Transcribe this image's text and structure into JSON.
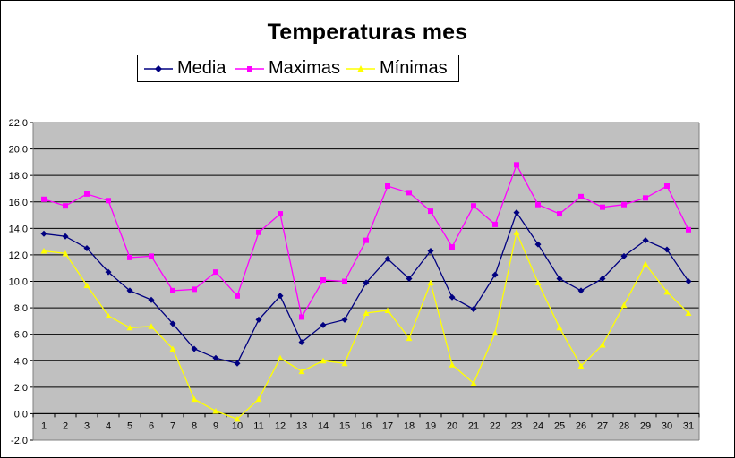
{
  "chart_data": {
    "type": "line",
    "title": "Temperaturas mes",
    "xlabel": "",
    "ylabel": "",
    "x": [
      1,
      2,
      3,
      4,
      5,
      6,
      7,
      8,
      9,
      10,
      11,
      12,
      13,
      14,
      15,
      16,
      17,
      18,
      19,
      20,
      21,
      22,
      23,
      24,
      25,
      26,
      27,
      28,
      29,
      30,
      31
    ],
    "x_tick_labels": [
      "1",
      "2",
      "3",
      "4",
      "5",
      "6",
      "7",
      "8",
      "9",
      "10",
      "11",
      "12",
      "13",
      "14",
      "15",
      "16",
      "17",
      "18",
      "19",
      "20",
      "21",
      "22",
      "23",
      "24",
      "25",
      "26",
      "27",
      "28",
      "29",
      "30",
      "31"
    ],
    "ylim": [
      -2.0,
      22.0
    ],
    "y_tick_labels": [
      "-2,0",
      "0,0",
      "2,0",
      "4,0",
      "6,0",
      "8,0",
      "10,0",
      "12,0",
      "14,0",
      "16,0",
      "18,0",
      "20,0",
      "22,0"
    ],
    "grid": true,
    "legend_position": "top",
    "plot_background": "#c0c0c0",
    "series": [
      {
        "name": "Media",
        "color": "#000080",
        "marker": "diamond",
        "values": [
          13.6,
          13.4,
          12.5,
          10.7,
          9.3,
          8.6,
          6.8,
          4.9,
          4.2,
          3.8,
          7.1,
          8.9,
          5.4,
          6.7,
          7.1,
          9.9,
          11.7,
          10.2,
          12.3,
          8.8,
          7.9,
          10.5,
          15.2,
          12.8,
          10.2,
          9.3,
          10.2,
          11.9,
          13.1,
          12.4,
          10.0
        ]
      },
      {
        "name": "Maximas",
        "color": "#ff00ff",
        "marker": "square",
        "values": [
          16.2,
          15.7,
          16.6,
          16.1,
          11.8,
          11.9,
          9.3,
          9.4,
          10.7,
          8.9,
          13.7,
          15.1,
          7.3,
          10.1,
          10.0,
          13.1,
          17.2,
          16.7,
          15.3,
          12.6,
          15.7,
          14.3,
          18.8,
          15.8,
          15.1,
          16.4,
          15.6,
          15.8,
          16.3,
          17.2,
          13.9
        ]
      },
      {
        "name": "Mínimas",
        "color": "#ffff00",
        "marker": "triangle",
        "values": [
          12.3,
          12.1,
          9.7,
          7.4,
          6.5,
          6.6,
          4.9,
          1.1,
          0.2,
          -0.4,
          1.1,
          4.2,
          3.2,
          4.0,
          3.8,
          7.6,
          7.8,
          5.7,
          9.9,
          3.7,
          2.3,
          6.1,
          13.7,
          9.9,
          6.5,
          3.6,
          5.2,
          8.2,
          11.3,
          9.2,
          7.6
        ]
      }
    ]
  }
}
